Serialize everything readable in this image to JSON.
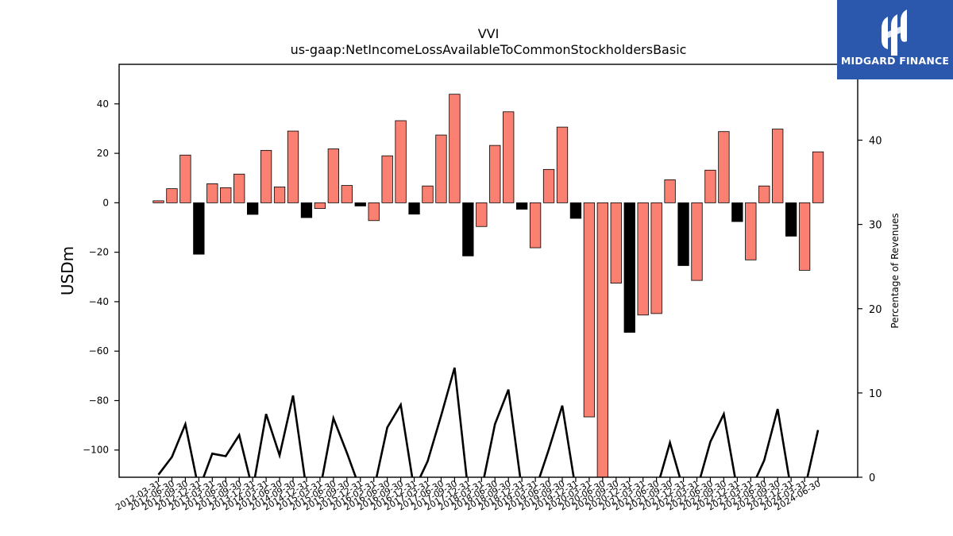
{
  "brand": {
    "name": "MIDGARD FINANCE",
    "bg_color": "#2b57ad"
  },
  "chart_data": {
    "type": "bar",
    "title": "VVI",
    "subtitle": "us-gaap:NetIncomeLossAvailableToCommonStockholdersBasic",
    "ylabel": "USDm",
    "y2label": "Percentage of Revenues",
    "ylim": [
      -111,
      56
    ],
    "y2lim": [
      0,
      49
    ],
    "yticks": [
      -100,
      -80,
      -60,
      -40,
      -20,
      0,
      20,
      40
    ],
    "y2ticks": [
      0,
      10,
      20,
      30,
      40
    ],
    "colors": {
      "positive_change": "#fa8072",
      "negative_change": "#000000",
      "line": "#000000"
    },
    "categories": [
      "2012-03-31",
      "2012-06-30",
      "2012-09-30",
      "2012-12-31",
      "2013-03-31",
      "2013-06-30",
      "2013-09-30",
      "2013-12-31",
      "2014-03-31",
      "2014-06-30",
      "2014-09-30",
      "2014-12-31",
      "2015-03-31",
      "2015-06-30",
      "2015-09-30",
      "2015-12-31",
      "2016-03-31",
      "2016-06-30",
      "2016-09-30",
      "2016-12-31",
      "2017-03-31",
      "2017-06-30",
      "2017-09-30",
      "2017-12-31",
      "2018-03-31",
      "2018-06-30",
      "2018-09-30",
      "2018-12-31",
      "2019-03-31",
      "2019-06-30",
      "2019-09-30",
      "2019-12-31",
      "2020-03-31",
      "2020-06-30",
      "2020-09-30",
      "2020-12-31",
      "2021-03-31",
      "2021-06-30",
      "2021-09-30",
      "2021-12-31",
      "2022-03-31",
      "2022-06-30",
      "2022-09-30",
      "2022-12-31",
      "2023-03-31",
      "2023-06-30",
      "2023-09-30",
      "2023-12-31",
      "2024-03-31",
      "2024-06-30"
    ],
    "series": [
      {
        "name": "",
        "type": "bar",
        "values": [
          0.8,
          5.7,
          19.3,
          -20.8,
          7.7,
          6.1,
          11.6,
          -4.7,
          21.2,
          6.4,
          29.0,
          -6.0,
          -2.3,
          21.8,
          7.0,
          -1.3,
          -7.2,
          19.0,
          33.2,
          -4.6,
          6.8,
          27.4,
          43.9,
          -21.5,
          -9.6,
          23.2,
          36.8,
          -2.6,
          -18.2,
          13.5,
          30.6,
          -6.3,
          -86.6,
          -112.0,
          -32.5,
          -52.4,
          -45.4,
          -44.8,
          9.3,
          -25.4,
          -31.4,
          13.2,
          28.8,
          -7.6,
          -23.1,
          6.8,
          29.8,
          -13.5,
          -27.3,
          20.6
        ],
        "colors": [
          "#fa8072",
          "#fa8072",
          "#fa8072",
          "#000000",
          "#fa8072",
          "#fa8072",
          "#fa8072",
          "#000000",
          "#fa8072",
          "#fa8072",
          "#fa8072",
          "#000000",
          "#fa8072",
          "#fa8072",
          "#fa8072",
          "#000000",
          "#fa8072",
          "#fa8072",
          "#fa8072",
          "#000000",
          "#fa8072",
          "#fa8072",
          "#fa8072",
          "#000000",
          "#fa8072",
          "#fa8072",
          "#fa8072",
          "#000000",
          "#fa8072",
          "#fa8072",
          "#fa8072",
          "#000000",
          "#fa8072",
          "#fa8072",
          "#fa8072",
          "#000000",
          "#fa8072",
          "#fa8072",
          "#fa8072",
          "#000000",
          "#fa8072",
          "#fa8072",
          "#fa8072",
          "#000000",
          "#fa8072",
          "#fa8072",
          "#fa8072",
          "#000000",
          "#fa8072",
          "#fa8072"
        ]
      },
      {
        "name": "",
        "type": "line",
        "axis": "right",
        "values": [
          0.3,
          2.4,
          6.3,
          null,
          2.8,
          2.5,
          5.0,
          null,
          7.5,
          2.6,
          9.7,
          null,
          null,
          7.0,
          2.9,
          null,
          null,
          5.9,
          8.6,
          null,
          1.9,
          7.3,
          13.0,
          null,
          null,
          6.3,
          10.4,
          null,
          null,
          3.3,
          8.5,
          null,
          null,
          null,
          null,
          null,
          null,
          null,
          4.1,
          null,
          null,
          4.2,
          7.5,
          null,
          null,
          2.0,
          8.1,
          null,
          null,
          5.6
        ]
      }
    ]
  }
}
